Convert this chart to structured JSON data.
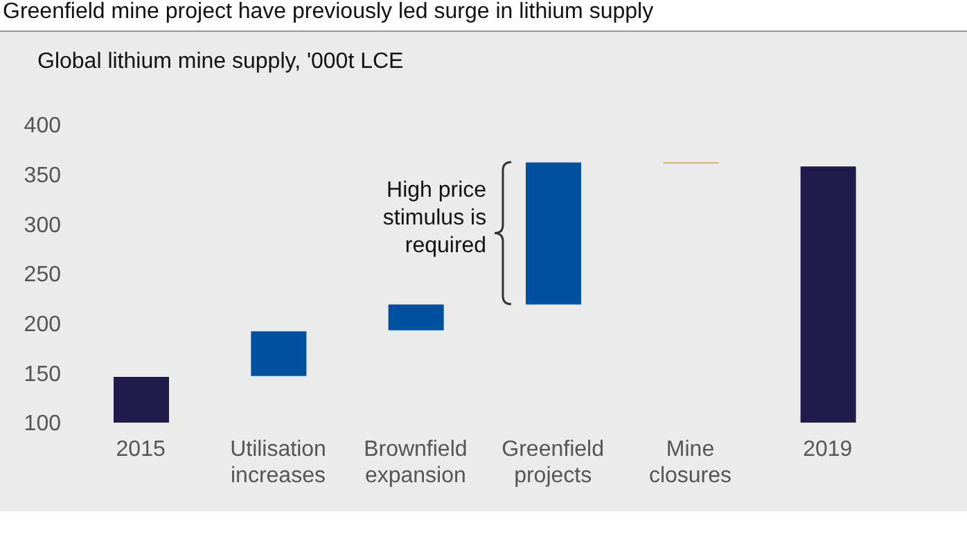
{
  "chart_data": {
    "type": "bar",
    "title": "Greenfield mine project have previously led surge in lithium supply",
    "subtitle": "Global lithium mine supply, '000t LCE",
    "categories": [
      "2015",
      "Utilisation increases",
      "Brownfield expansion",
      "Greenfield projects",
      "Mine closures",
      "2019"
    ],
    "values": [
      46,
      45,
      26,
      143,
      -1,
      258
    ],
    "base": [
      100,
      147,
      193,
      219,
      362,
      100
    ],
    "colors": [
      "#201a4a",
      "#0050a0",
      "#0050a0",
      "#0050a0",
      "#e8a317",
      "#201a4a"
    ],
    "ylim": [
      100,
      400
    ],
    "yticks": [
      100,
      150,
      200,
      250,
      300,
      350,
      400
    ],
    "annotations": [
      "High price stimulus is required"
    ]
  }
}
